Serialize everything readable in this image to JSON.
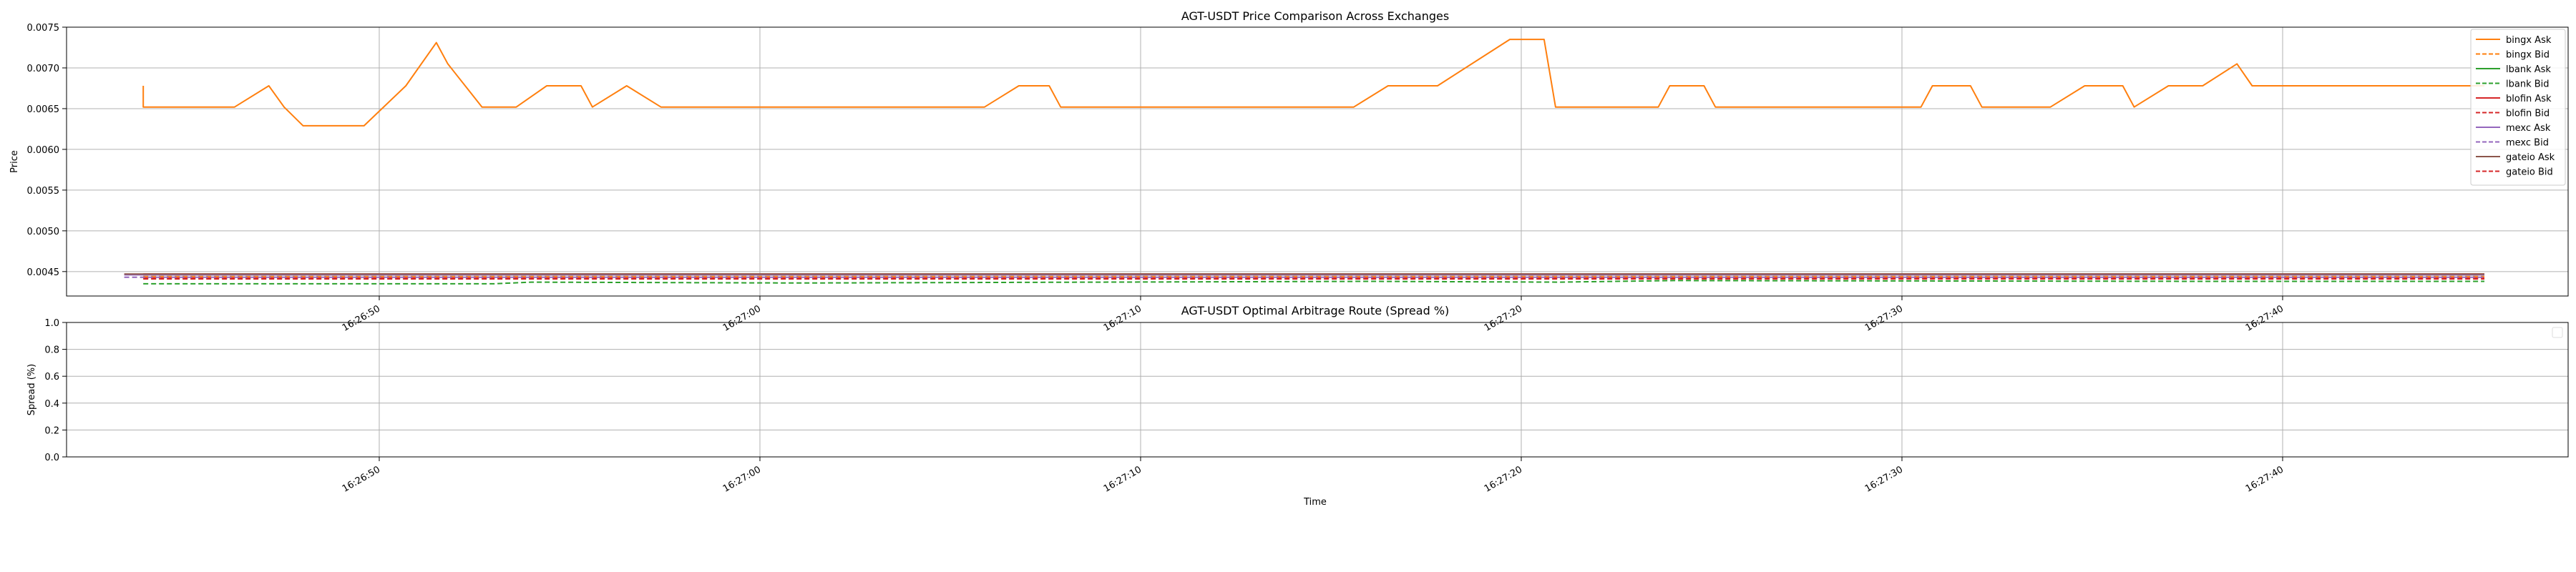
{
  "chart_data": [
    {
      "type": "line",
      "title": "AGT-USDT Price Comparison Across Exchanges",
      "xlabel": "",
      "ylabel": "Price",
      "ylim": [
        0.0042,
        0.0075
      ],
      "yticks": [
        "0.0045",
        "0.0050",
        "0.0055",
        "0.0060",
        "0.0065",
        "0.0070",
        "0.0075"
      ],
      "xticks": [
        "16:26:50",
        "16:27:00",
        "16:27:10",
        "16:27:20",
        "16:27:30",
        "16:27:40"
      ],
      "grid": true,
      "legend": "right",
      "series": [
        {
          "name": "bingx Ask",
          "color": "#ff7f0e",
          "dash": false,
          "points": [
            [
              "16:26:43.8",
              0.00678
            ],
            [
              "16:26:43.8",
              0.00652
            ],
            [
              "16:26:46.2",
              0.00652
            ],
            [
              "16:26:47.1",
              0.00678
            ],
            [
              "16:26:47.5",
              0.00652
            ],
            [
              "16:26:48.0",
              0.00629
            ],
            [
              "16:26:49.6",
              0.00629
            ],
            [
              "16:26:50.7",
              0.00678
            ],
            [
              "16:26:51.5",
              0.00731
            ],
            [
              "16:26:51.8",
              0.00705
            ],
            [
              "16:26:52.7",
              0.00652
            ],
            [
              "16:26:53.6",
              0.00652
            ],
            [
              "16:26:54.4",
              0.00678
            ],
            [
              "16:26:55.3",
              0.00678
            ],
            [
              "16:26:55.6",
              0.00652
            ],
            [
              "16:26:56.5",
              0.00678
            ],
            [
              "16:26:57.4",
              0.00652
            ],
            [
              "16:27:05.9",
              0.00652
            ],
            [
              "16:27:06.8",
              0.00678
            ],
            [
              "16:27:07.6",
              0.00678
            ],
            [
              "16:27:07.9",
              0.00652
            ],
            [
              "16:27:15.6",
              0.00652
            ],
            [
              "16:27:16.5",
              0.00678
            ],
            [
              "16:27:17.8",
              0.00678
            ],
            [
              "16:27:19.7",
              0.00735
            ],
            [
              "16:27:20.6",
              0.00735
            ],
            [
              "16:27:20.9",
              0.00652
            ],
            [
              "16:27:23.6",
              0.00652
            ],
            [
              "16:27:23.9",
              0.00678
            ],
            [
              "16:27:24.8",
              0.00678
            ],
            [
              "16:27:25.1",
              0.00652
            ],
            [
              "16:27:30.5",
              0.00652
            ],
            [
              "16:27:30.8",
              0.00678
            ],
            [
              "16:27:31.8",
              0.00678
            ],
            [
              "16:27:32.1",
              0.00652
            ],
            [
              "16:27:33.9",
              0.00652
            ],
            [
              "16:27:34.8",
              0.00678
            ],
            [
              "16:27:35.8",
              0.00678
            ],
            [
              "16:27:36.1",
              0.00652
            ],
            [
              "16:27:37.0",
              0.00678
            ],
            [
              "16:27:37.9",
              0.00678
            ],
            [
              "16:27:38.8",
              0.00705
            ],
            [
              "16:27:39.2",
              0.00678
            ],
            [
              "16:27:45.3",
              0.00678
            ]
          ]
        },
        {
          "name": "bingx Bid",
          "color": "#ff7f0e",
          "dash": true,
          "points": [
            [
              "16:26:43.8",
              0.00444
            ],
            [
              "16:27:45.3",
              0.00444
            ]
          ]
        },
        {
          "name": "lbank Ask",
          "color": "#2ca02c",
          "dash": false,
          "points": [
            [
              "16:26:43.8",
              0.00446
            ],
            [
              "16:27:45.3",
              0.00446
            ]
          ]
        },
        {
          "name": "lbank Bid",
          "color": "#2ca02c",
          "dash": true,
          "points": [
            [
              "16:26:43.8",
              0.00435
            ],
            [
              "16:26:53.0",
              0.00435
            ],
            [
              "16:26:54.0",
              0.00437
            ],
            [
              "16:27:01.0",
              0.00436
            ],
            [
              "16:27:16.0",
              0.00438
            ],
            [
              "16:27:21.0",
              0.00437
            ],
            [
              "16:27:24.0",
              0.00439
            ],
            [
              "16:27:38.0",
              0.00438
            ],
            [
              "16:27:45.3",
              0.00438
            ]
          ]
        },
        {
          "name": "blofin Ask",
          "color": "#d62728",
          "dash": false,
          "points": [
            [
              "16:26:43.8",
              0.00447
            ],
            [
              "16:27:45.3",
              0.00447
            ]
          ]
        },
        {
          "name": "blofin Bid",
          "color": "#d62728",
          "dash": true,
          "points": [
            [
              "16:26:43.8",
              0.00442
            ],
            [
              "16:27:45.3",
              0.00442
            ]
          ]
        },
        {
          "name": "mexc Ask",
          "color": "#9467bd",
          "dash": false,
          "points": [
            [
              "16:26:43.3",
              0.00446
            ],
            [
              "16:27:45.3",
              0.00446
            ]
          ]
        },
        {
          "name": "mexc Bid",
          "color": "#9467bd",
          "dash": true,
          "points": [
            [
              "16:26:43.3",
              0.00443
            ],
            [
              "16:27:45.3",
              0.00443
            ]
          ]
        },
        {
          "name": "gateio Ask",
          "color": "#8c564b",
          "dash": false,
          "points": [
            [
              "16:26:43.3",
              0.00447
            ],
            [
              "16:27:45.3",
              0.00447
            ]
          ]
        },
        {
          "name": "gateio Bid",
          "color": "#d62728",
          "dash": true,
          "points": [
            [
              "16:26:43.8",
              0.00441
            ],
            [
              "16:27:45.3",
              0.00441
            ]
          ]
        }
      ]
    },
    {
      "type": "line",
      "title": "AGT-USDT Optimal Arbitrage Route (Spread %)",
      "xlabel": "Time",
      "ylabel": "Spread (%)",
      "ylim": [
        0.0,
        1.0
      ],
      "yticks": [
        "0.0",
        "0.2",
        "0.4",
        "0.6",
        "0.8",
        "1.0"
      ],
      "xticks": [
        "16:26:50",
        "16:27:00",
        "16:27:10",
        "16:27:20",
        "16:27:30",
        "16:27:40"
      ],
      "grid": true,
      "legend": "top-right",
      "series": []
    }
  ]
}
